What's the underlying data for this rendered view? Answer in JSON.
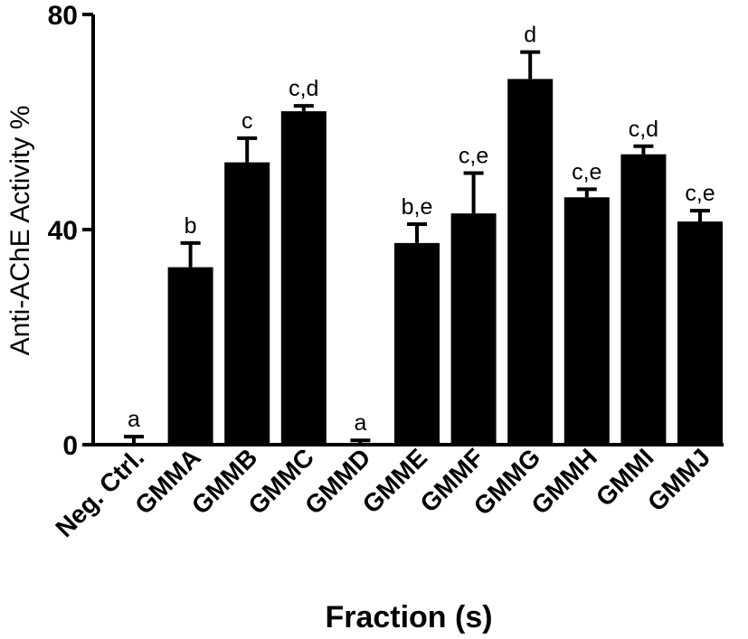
{
  "chart_data": {
    "type": "bar",
    "title": "",
    "xlabel": "Fraction (s)",
    "ylabel": "Anti-AChE Activity %",
    "ylim": [
      0,
      80
    ],
    "yticks": [
      "0",
      "40",
      "80"
    ],
    "ytick_values": [
      0,
      40,
      80
    ],
    "categories": [
      "Neg. Ctrl.",
      "GMMA",
      "GMMB",
      "GMMC",
      "GMMD",
      "GMME",
      "GMMF",
      "GMMG",
      "GMMH",
      "GMMI",
      "GMMJ"
    ],
    "values": [
      0,
      33,
      52.5,
      62,
      0,
      37.5,
      43,
      68,
      46,
      54,
      41.5
    ],
    "errors": [
      1.5,
      4.5,
      4.5,
      1,
      0.8,
      3.5,
      7.5,
      5,
      1.5,
      1.5,
      2
    ],
    "significance": [
      "a",
      "b",
      "c",
      "c,d",
      "a",
      "b,e",
      "c,e",
      "d",
      "c,e",
      "c,d",
      "c,e"
    ],
    "bar_color": "#000000",
    "grid": false,
    "legend": "none"
  }
}
